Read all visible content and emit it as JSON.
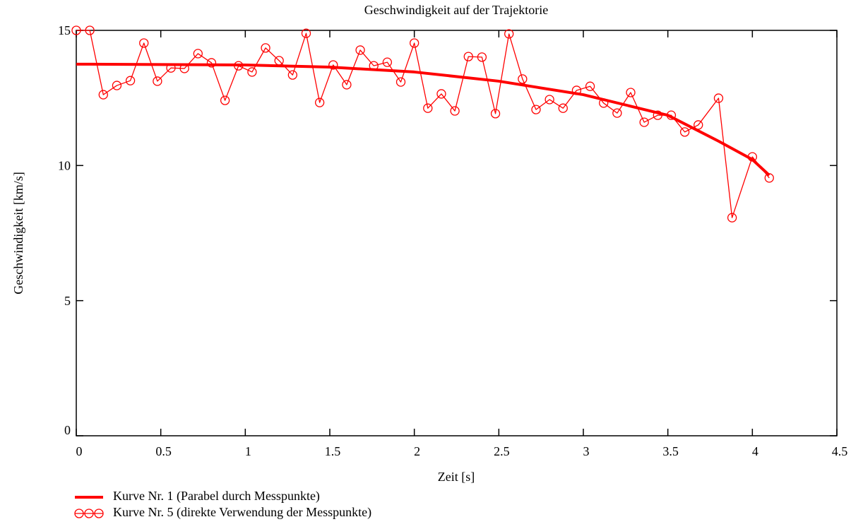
{
  "chart_data": {
    "type": "line",
    "title": "Geschwindigkeit auf der Trajektorie",
    "x_label": "Zeit [s]",
    "y_label": "Geschwindigkeit [km/s]",
    "xlim": [
      0,
      4.5
    ],
    "xticks": [
      0,
      0.5,
      1,
      1.5,
      2,
      2.5,
      3,
      3.5,
      4,
      4.5
    ],
    "ylim": [
      0,
      15
    ],
    "yticks": [
      0,
      5,
      10,
      15
    ],
    "legend": "bottom-left",
    "series": [
      {
        "name": "Kurve Nr. 1 (Parabel durch Messpunkte)",
        "color": "#ff0000",
        "marker": "none",
        "x": [
          0,
          1,
          1.5,
          2,
          2.5,
          3,
          3.5,
          3.8,
          4,
          4.1
        ],
        "values": [
          13.75,
          13.72,
          13.64,
          13.46,
          13.12,
          12.62,
          11.86,
          10.9,
          10.22,
          9.64
        ]
      },
      {
        "name": "Kurve Nr. 5 (direkte Verwendung der Messpunkte)",
        "color": "#ff0000",
        "marker": "circle",
        "x": [
          0,
          0.08,
          0.16,
          0.24,
          0.32,
          0.4,
          0.48,
          0.56,
          0.64,
          0.72,
          0.8,
          0.88,
          0.96,
          1.04,
          1.12,
          1.2,
          1.28,
          1.36,
          1.44,
          1.52,
          1.6,
          1.68,
          1.76,
          1.84,
          1.92,
          2,
          2.08,
          2.16,
          2.24,
          2.32,
          2.4,
          2.48,
          2.56,
          2.64,
          2.72,
          2.8,
          2.88,
          2.96,
          3.04,
          3.12,
          3.2,
          3.28,
          3.36,
          3.44,
          3.52,
          3.6,
          3.68,
          3.8,
          3.88,
          4,
          4.1
        ],
        "values": [
          15.0,
          15.0,
          12.62,
          12.96,
          13.14,
          14.53,
          13.12,
          13.61,
          13.59,
          14.14,
          13.8,
          12.41,
          13.69,
          13.46,
          14.35,
          13.88,
          13.35,
          14.89,
          12.33,
          13.72,
          12.99,
          14.27,
          13.69,
          13.82,
          13.09,
          14.53,
          12.12,
          12.65,
          12.02,
          14.03,
          14.01,
          11.92,
          14.87,
          13.2,
          12.07,
          12.44,
          12.12,
          12.78,
          12.93,
          12.31,
          11.94,
          12.7,
          11.6,
          11.86,
          11.86,
          11.24,
          11.5,
          12.49,
          8.07,
          10.32,
          9.54
        ]
      }
    ]
  }
}
